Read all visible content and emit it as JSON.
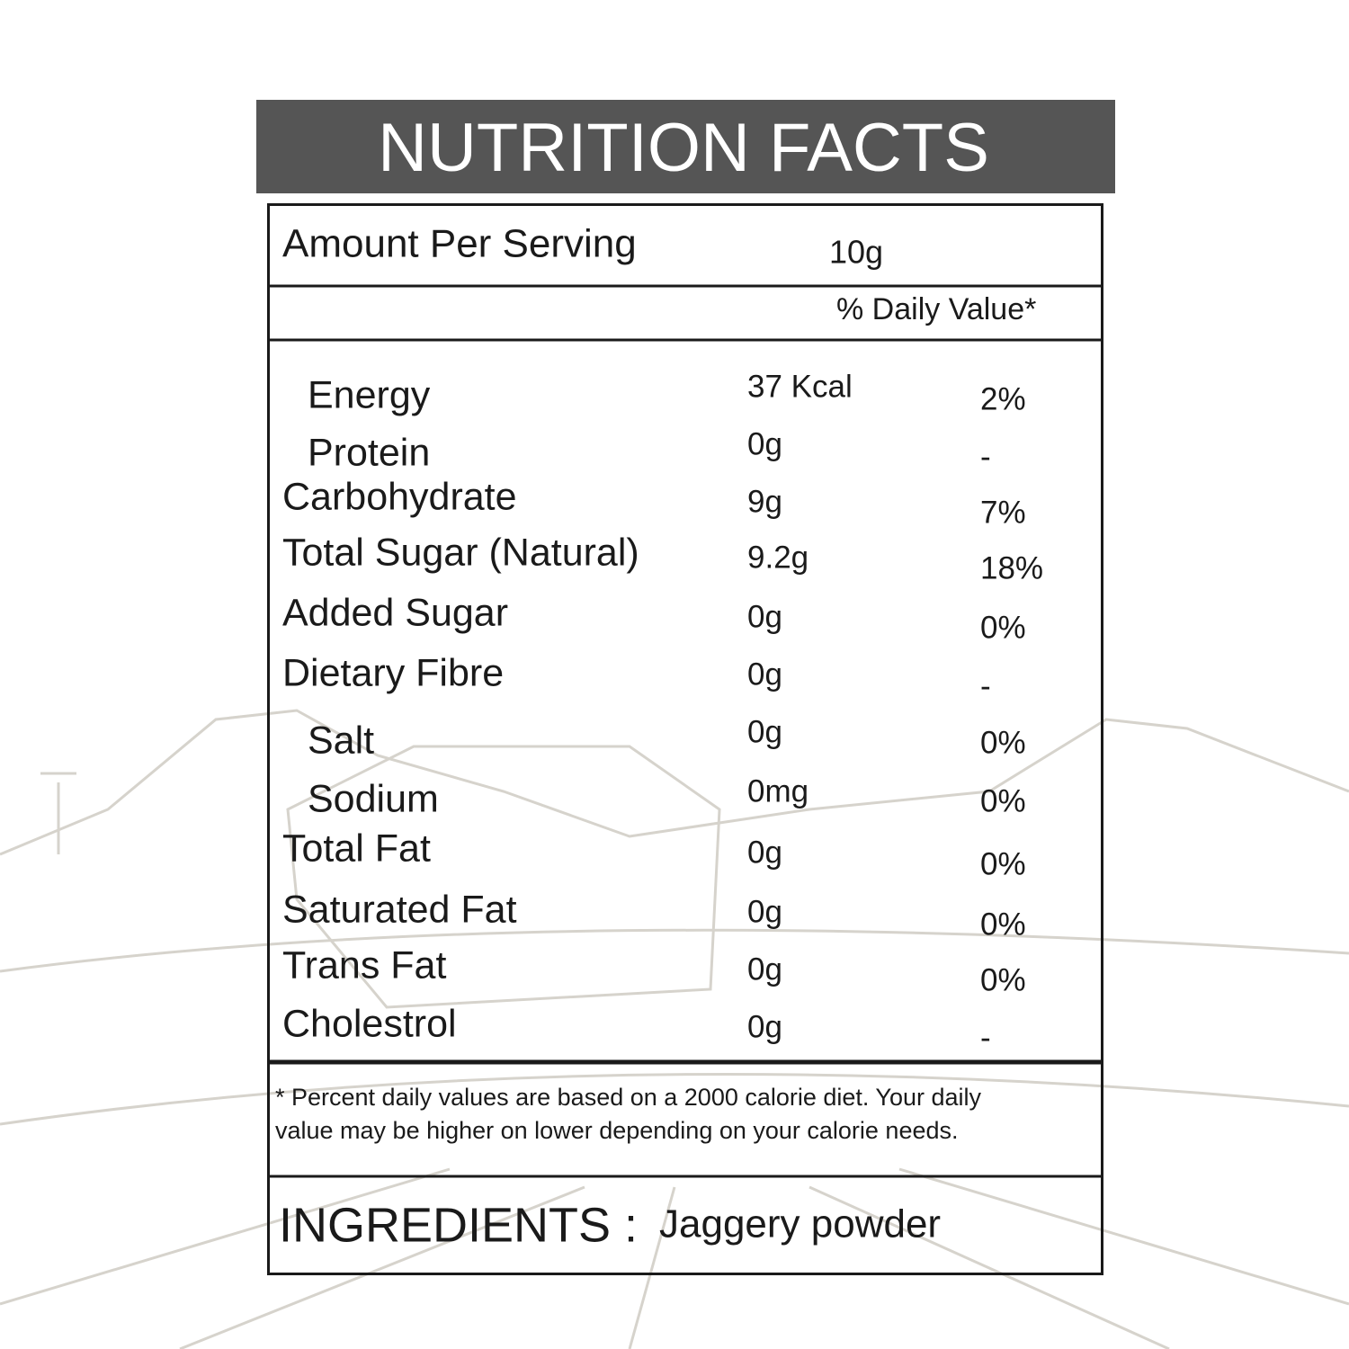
{
  "title": "NUTRITION FACTS",
  "serving": {
    "label": "Amount Per Serving",
    "value": "10g"
  },
  "daily_value_header": "% Daily Value*",
  "rows": [
    {
      "name": "Energy",
      "amount": "37 Kcal",
      "dv": "2%"
    },
    {
      "name": "Protein",
      "amount": "0g",
      "dv": "-"
    },
    {
      "name": "Carbohydrate",
      "amount": "9g",
      "dv": "7%"
    },
    {
      "name": "Total Sugar (Natural)",
      "amount": "9.2g",
      "dv": "18%"
    },
    {
      "name": "Added Sugar",
      "amount": "0g",
      "dv": "0%"
    },
    {
      "name": "Dietary Fibre",
      "amount": "0g",
      "dv": "-"
    },
    {
      "name": "Salt",
      "amount": "0g",
      "dv": "0%"
    },
    {
      "name": "Sodium",
      "amount": "0mg",
      "dv": "0%"
    },
    {
      "name": "Total Fat",
      "amount": "0g",
      "dv": "0%"
    },
    {
      "name": "Saturated Fat",
      "amount": "0g",
      "dv": "0%"
    },
    {
      "name": "Trans Fat",
      "amount": "0g",
      "dv": "0%"
    },
    {
      "name": "Cholestrol",
      "amount": "0g",
      "dv": "-"
    }
  ],
  "footnote": [
    "* Percent daily values are based on a 2000 calorie diet. Your daily",
    "value may be higher on lower depending on your calorie needs."
  ],
  "ingredients": {
    "label": "INGREDIENTS :",
    "value": "Jaggery powder"
  }
}
